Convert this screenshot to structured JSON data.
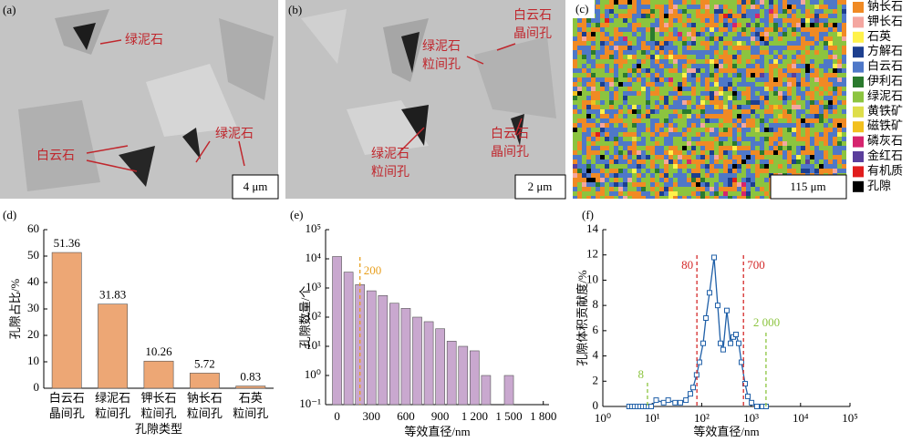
{
  "panels": [
    {
      "label": "(a)",
      "scale_bar": "4 μm",
      "annotations": [
        [
          "绿泥石"
        ],
        [
          "白云石"
        ],
        [
          "绿泥石"
        ]
      ]
    },
    {
      "label": "(b)",
      "scale_bar": "2 μm",
      "annotations": [
        [
          "白云石",
          "晶间孔"
        ],
        [
          "绿泥石",
          "粒间孔"
        ],
        [
          "绿泥石",
          "粒间孔"
        ],
        [
          "白云石",
          "晶间孔"
        ]
      ]
    },
    {
      "label": "(c)",
      "scale_bar": "115 μm",
      "legend": [
        {
          "name": "钠长石",
          "color": "#f08a24"
        },
        {
          "name": "钾长石",
          "color": "#f4a6a0"
        },
        {
          "name": "石英",
          "color": "#fff24a"
        },
        {
          "name": "方解石",
          "color": "#1d3f8f"
        },
        {
          "name": "白云石",
          "color": "#4f78c8"
        },
        {
          "name": "伊利石",
          "color": "#2b7a2e"
        },
        {
          "name": "绿泥石",
          "color": "#8cc43f"
        },
        {
          "name": "黄铁矿",
          "color": "#dede4a"
        },
        {
          "name": "磁铁矿",
          "color": "#f2c01e"
        },
        {
          "name": "磷灰石",
          "color": "#d6246e"
        },
        {
          "name": "金红石",
          "color": "#5b3f9c"
        },
        {
          "name": "有机质",
          "color": "#e11d1d"
        },
        {
          "name": "孔隙",
          "color": "#000000"
        }
      ]
    }
  ],
  "chart_data": [
    {
      "type": "bar",
      "panel_label": "(d)",
      "xlabel": "孔隙类型",
      "ylabel": "孔隙占比/%",
      "categories": [
        [
          "白云石",
          "晶间孔"
        ],
        [
          "绿泥石",
          "粒间孔"
        ],
        [
          "钾长石",
          "粒间孔"
        ],
        [
          "钠长石",
          "粒间孔"
        ],
        [
          "石英",
          "粒间孔"
        ]
      ],
      "values": [
        51.36,
        31.83,
        10.26,
        5.72,
        0.83
      ],
      "color": "#eda775",
      "ylim": [
        0,
        60
      ],
      "yticks": [
        0,
        10,
        20,
        30,
        40,
        50,
        60
      ]
    },
    {
      "type": "bar",
      "panel_label": "(e)",
      "xlabel": "等效直径/nm",
      "ylabel": "孔隙数量/个",
      "log_y": true,
      "x": [
        0,
        100,
        200,
        300,
        400,
        500,
        600,
        700,
        800,
        900,
        1000,
        1100,
        1200,
        1300,
        1500
      ],
      "values": [
        12000,
        3500,
        1300,
        800,
        550,
        300,
        200,
        100,
        70,
        40,
        15,
        10,
        7,
        1,
        1
      ],
      "color": "#c9a8cf",
      "xlim": [
        -100,
        1850
      ],
      "xticks": [
        0,
        300,
        600,
        900,
        {
          "value": 1200,
          "label": "1 200"
        },
        {
          "value": 1500,
          "label": "1 500"
        },
        {
          "value": 1800,
          "label": "1 800"
        }
      ],
      "ylim": [
        0.1,
        100000
      ],
      "yticks": [
        {
          "value": 0.1,
          "label": "10⁻¹"
        },
        {
          "value": 1,
          "label": "10⁰"
        },
        {
          "value": 10,
          "label": "10¹"
        },
        {
          "value": 100,
          "label": "10²"
        },
        {
          "value": 1000,
          "label": "10³"
        },
        {
          "value": 10000,
          "label": "10⁴"
        },
        {
          "value": 100000,
          "label": "10⁵"
        }
      ],
      "vlines": [
        {
          "x": 200,
          "color": "#e8a020"
        }
      ]
    },
    {
      "type": "line",
      "panel_label": "(f)",
      "xlabel": "等效直径/nm",
      "ylabel": "孔隙体积贡献度/%",
      "log_x": true,
      "x": [
        3.4,
        3.9,
        4.4,
        5.0,
        5.7,
        6.5,
        7.4,
        8.4,
        9.5,
        12,
        17,
        21,
        29,
        37,
        48,
        59,
        67,
        79,
        90,
        107,
        122,
        144,
        178,
        211,
        240,
        272,
        323,
        383,
        435,
        494,
        561,
        637,
        755,
        859,
        1020,
        1310,
        1690,
        2010
      ],
      "values": [
        0,
        0,
        0,
        0,
        0,
        0,
        0,
        0,
        0,
        0.5,
        0.3,
        0.5,
        0.3,
        0.3,
        0.5,
        1.0,
        1.5,
        2.5,
        3.5,
        5.0,
        7.0,
        9.0,
        11.8,
        8.0,
        5.0,
        4.5,
        7.6,
        5.0,
        5.5,
        5.7,
        5.0,
        3.5,
        1.8,
        0.8,
        0.3,
        0,
        0,
        0
      ],
      "color": "#2060a8",
      "xlim": [
        1,
        100000
      ],
      "xticks": [
        {
          "value": 1,
          "label": "10⁰"
        },
        {
          "value": 10,
          "label": "10¹"
        },
        {
          "value": 100,
          "label": "10²"
        },
        {
          "value": 1000,
          "label": "10³"
        },
        {
          "value": 10000,
          "label": "10⁴"
        },
        {
          "value": 100000,
          "label": "10⁵"
        }
      ],
      "ylim": [
        0,
        14
      ],
      "yticks": [
        0,
        2,
        4,
        6,
        8,
        10,
        12,
        14
      ],
      "vlines": [
        {
          "x": 8,
          "color": "#8cc43f"
        },
        {
          "x": 80,
          "color": "#d42a2a"
        },
        {
          "x": 700,
          "color": "#d42a2a"
        },
        {
          "x": 2000,
          "label": "2 000",
          "color": "#8cc43f"
        }
      ]
    }
  ]
}
